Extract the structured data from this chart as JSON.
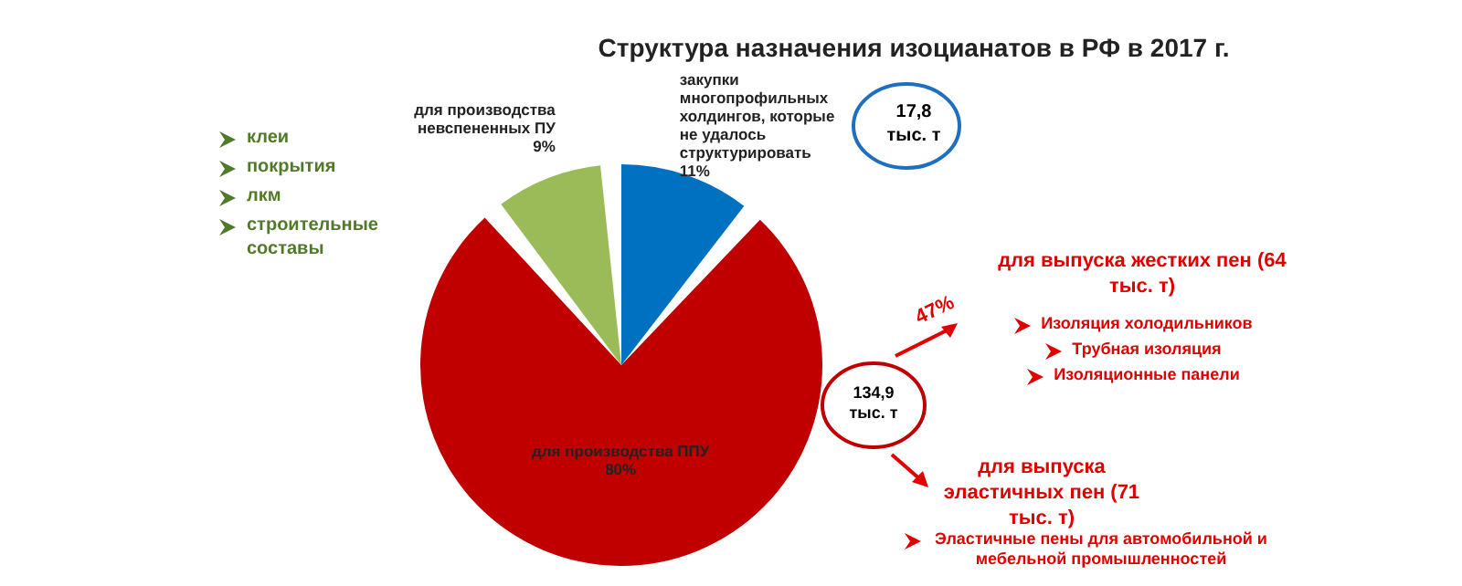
{
  "chart_data": {
    "type": "pie",
    "title": "Структура назначения изоцианатов в РФ в 2017 г.",
    "categories": [
      "закупки многопрофильных холдингов, которые не удалось структурировать",
      "для производства ППУ",
      "для производства невспененных ПУ"
    ],
    "values": [
      11,
      80,
      9
    ],
    "colors": [
      "#0070c0",
      "#c00000",
      "#9bbb59"
    ],
    "value_labels": [
      "11%",
      "80%",
      "9%"
    ],
    "legend": false,
    "annotations": [
      "клеи",
      "покрытия",
      "лкм",
      "строительные составы",
      "17,8 тыс. т",
      "для выпуска жестких пен (64 тыс. т)",
      "Изоляция холодильников",
      "Трубная изоляция",
      "Изоляционные панели",
      "47%",
      "134,9 тыс. т",
      "для выпуска эластичных пен (71 тыс. т)",
      "Эластичные пены для автомобильной и мебельной промышленностей"
    ]
  }
}
